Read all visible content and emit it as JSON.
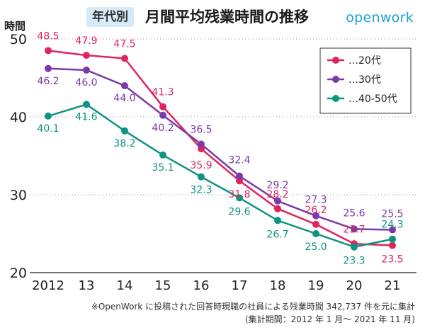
{
  "header": {
    "tag": "年代別",
    "title": "月間平均残業時間の推移",
    "brand": "openwork"
  },
  "chart_data": {
    "type": "line",
    "title": "月間平均残業時間の推移",
    "ylabel": "時間",
    "xlabel": "",
    "categories": [
      "2012",
      "13",
      "14",
      "15",
      "16",
      "17",
      "18",
      "19",
      "20",
      "21"
    ],
    "ylim": [
      20,
      50
    ],
    "yticks": [
      20,
      30,
      40,
      50
    ],
    "grid": "horizontal dotted",
    "legend_position": "top-right",
    "series": [
      {
        "name": "…20代",
        "color": "#e0245e",
        "values": [
          48.5,
          47.9,
          47.5,
          41.3,
          35.9,
          31.8,
          28.2,
          26.2,
          23.7,
          23.5
        ]
      },
      {
        "name": "…30代",
        "color": "#7b3aa8",
        "values": [
          46.2,
          46.0,
          44.0,
          40.2,
          36.5,
          32.4,
          29.2,
          27.3,
          25.6,
          25.5
        ]
      },
      {
        "name": "…40-50代",
        "color": "#0d9383",
        "values": [
          40.1,
          41.6,
          38.2,
          35.1,
          32.3,
          29.6,
          26.7,
          25.0,
          23.3,
          24.3
        ]
      }
    ]
  },
  "footnote": {
    "line1": "※OpenWork に投稿された回答時現職の社員による残業時間 342,737 件を元に集計",
    "line2": "(集計期間：2012 年 1 月〜 2021 年 11 月)"
  }
}
